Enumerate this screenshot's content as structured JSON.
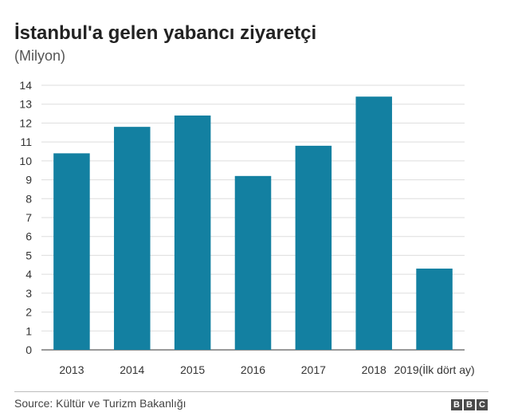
{
  "chart_data": {
    "type": "bar",
    "title": "İstanbul'a gelen yabancı ziyaretçi",
    "subtitle": "(Milyon)",
    "categories": [
      "2013",
      "2014",
      "2015",
      "2016",
      "2017",
      "2018",
      "2019(İlk dört ay)"
    ],
    "values": [
      10.4,
      11.8,
      12.4,
      9.2,
      10.8,
      13.4,
      4.3
    ],
    "ylim": [
      0,
      14
    ],
    "yticks": [
      0,
      1,
      2,
      3,
      4,
      5,
      6,
      7,
      8,
      9,
      10,
      11,
      12,
      13,
      14
    ],
    "xlabel": "",
    "ylabel": "",
    "grid": true,
    "bar_color": "#1380a1",
    "grid_color": "#dddddd"
  },
  "footer": {
    "source": "Source: Kültür ve Turizm Bakanlığı",
    "logo_letters": [
      "B",
      "B",
      "C"
    ]
  }
}
